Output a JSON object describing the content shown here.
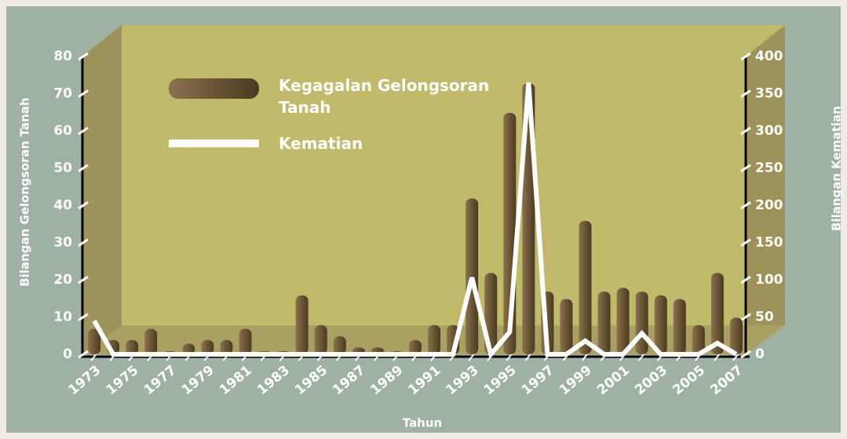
{
  "chart_data": {
    "type": "bar",
    "x_label": "Tahun",
    "y_label": "Bilangan Gelongsoran Tanah",
    "y2_label": "Bilangan Kematian",
    "categories": [
      "1973",
      null,
      "1975",
      null,
      "1977",
      null,
      "1979",
      null,
      "1981",
      null,
      "1983",
      null,
      "1985",
      null,
      "1987",
      null,
      "1989",
      null,
      "1991",
      null,
      "1993",
      null,
      "1995",
      null,
      "1997",
      null,
      "1999",
      null,
      "2001",
      null,
      "2003",
      null,
      "2005",
      null,
      "2007"
    ],
    "series": [
      {
        "name": "Kegagalan Gelongsoran Tanah",
        "type": "bar",
        "color": "#6b5535",
        "values": [
          6,
          3,
          3,
          6,
          0,
          2,
          3,
          3,
          6,
          0,
          0,
          15,
          7,
          4,
          1,
          1,
          0,
          3,
          7,
          7,
          41,
          21,
          64,
          72,
          16,
          14,
          35,
          16,
          17,
          16,
          15,
          14,
          7,
          21,
          9
        ]
      },
      {
        "name": "Kematian",
        "type": "line",
        "color": "#ffffff",
        "axis": "y2",
        "values": [
          45,
          0,
          0,
          0,
          0,
          0,
          0,
          0,
          0,
          0,
          0,
          0,
          0,
          0,
          0,
          0,
          0,
          0,
          0,
          0,
          103,
          0,
          30,
          365,
          0,
          0,
          18,
          0,
          0,
          28,
          0,
          0,
          0,
          15,
          0
        ]
      }
    ],
    "ylim": [
      0,
      80
    ],
    "yticks": [
      0,
      10,
      20,
      30,
      40,
      50,
      60,
      70,
      80
    ],
    "y2lim": [
      0,
      400
    ],
    "y2ticks": [
      0,
      50,
      100,
      150,
      200,
      250,
      300,
      350,
      400
    ]
  }
}
